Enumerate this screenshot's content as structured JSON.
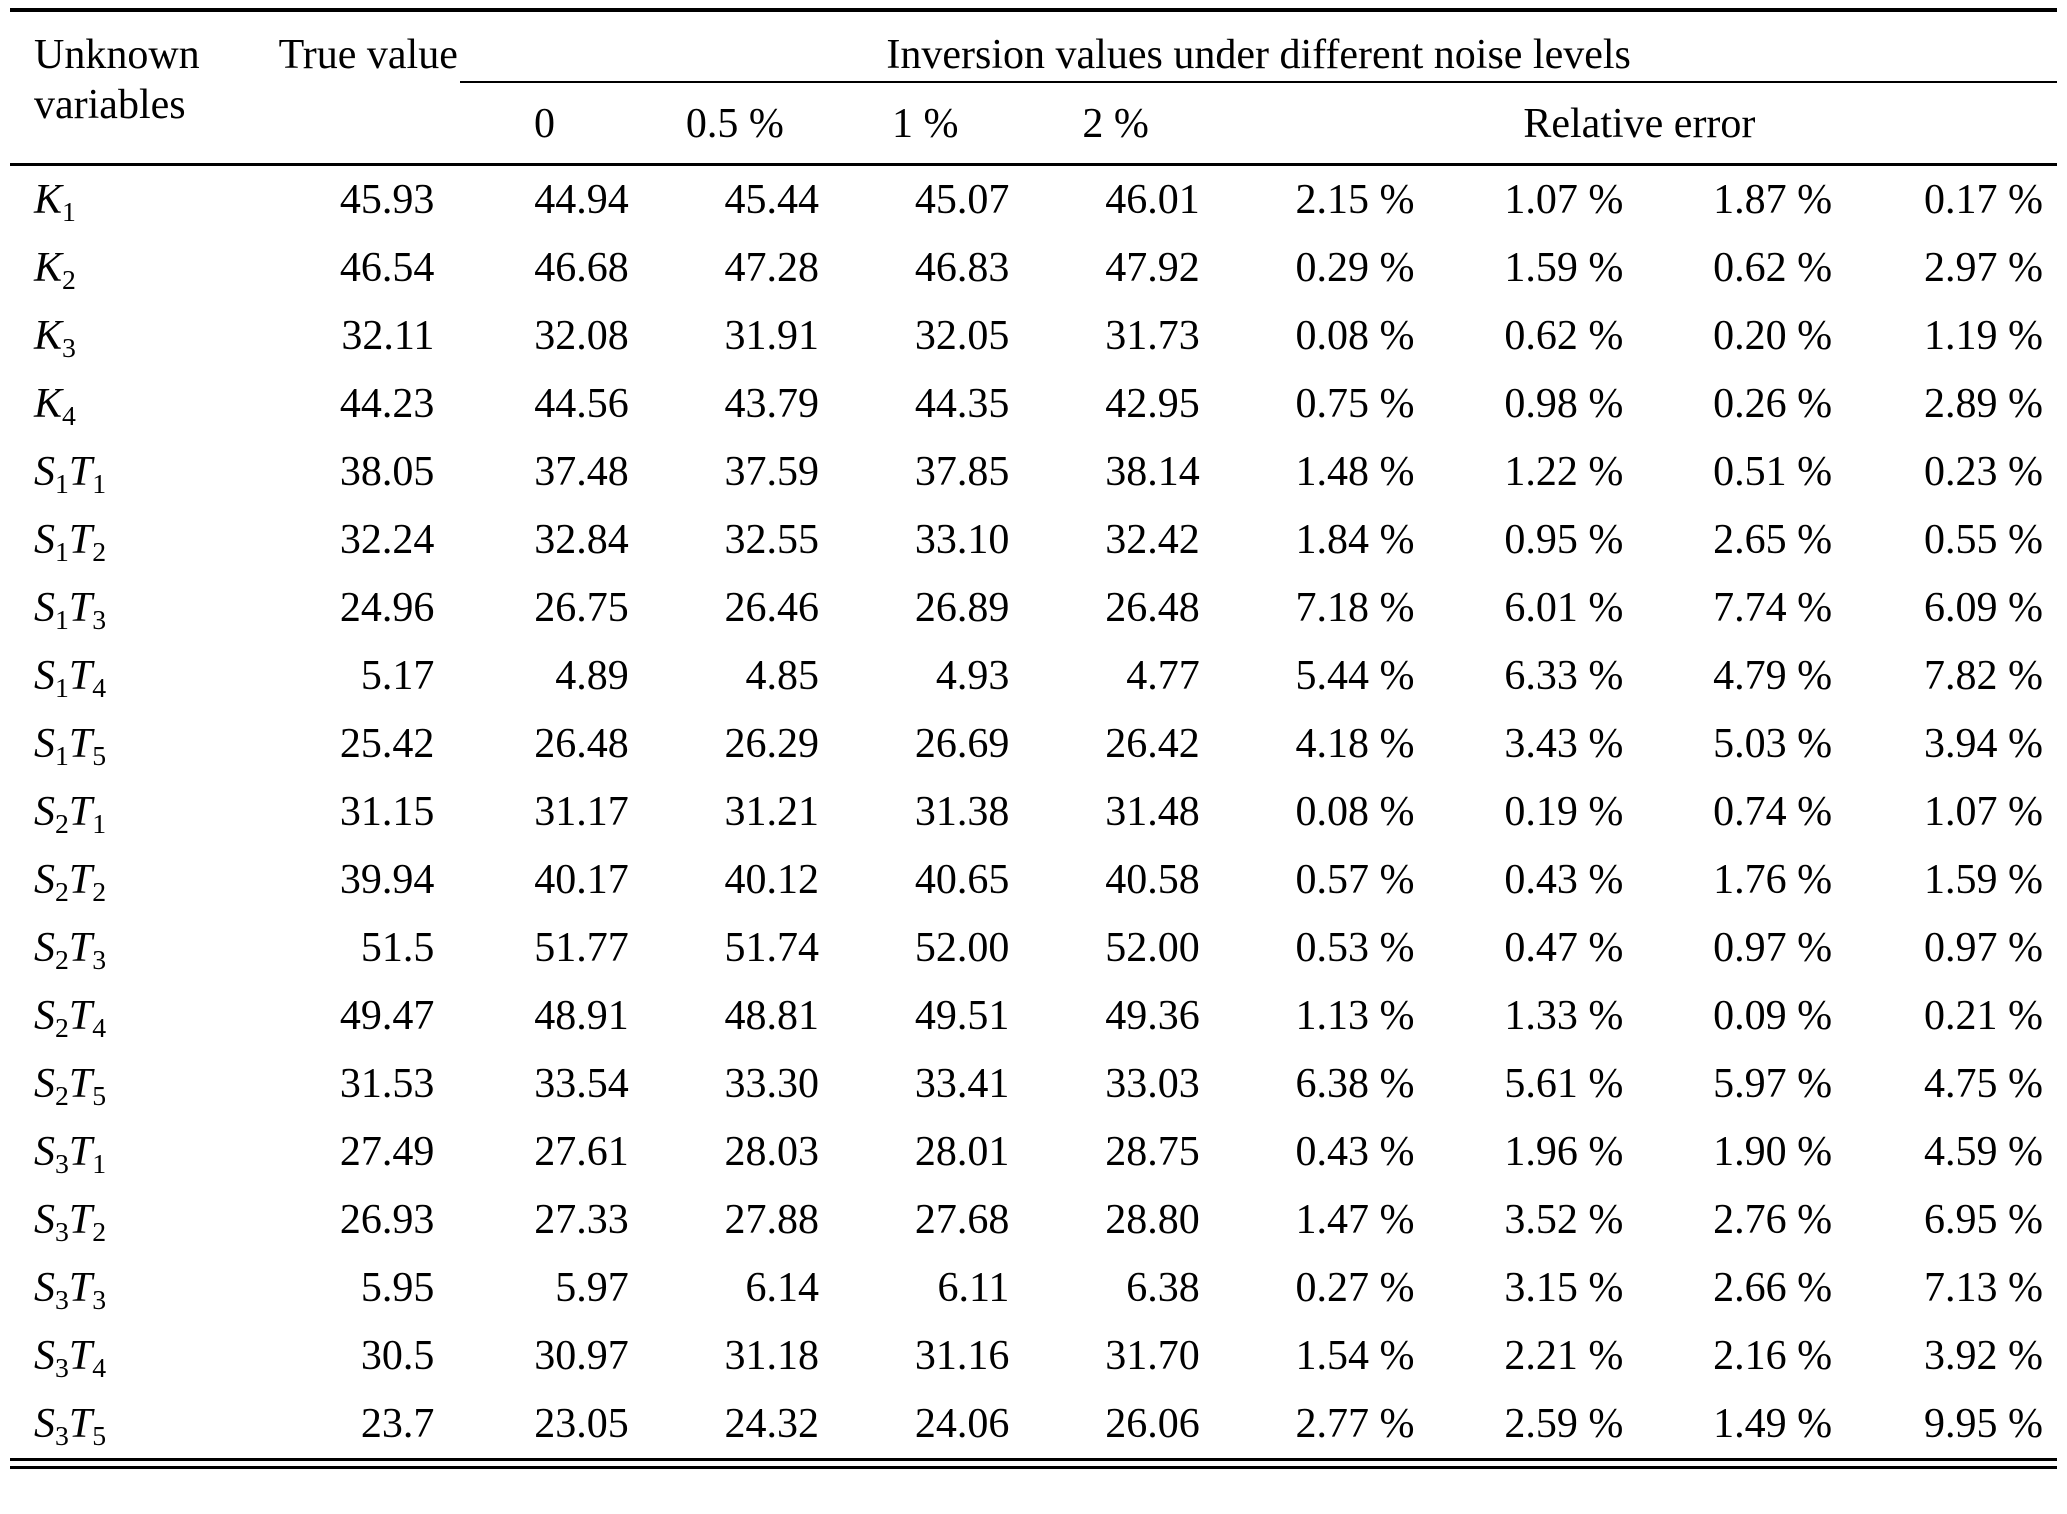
{
  "table": {
    "header": {
      "col_unknown": "Unknown variables",
      "col_true": "True value",
      "col_inversion": "Inversion values under different noise levels",
      "noise_levels": [
        "0",
        "0.5 %",
        "1 %",
        "2 %"
      ],
      "col_relative_error": "Relative error"
    },
    "rows": [
      {
        "var": "K_1",
        "true_value": "45.93",
        "inversion": [
          "44.94",
          "45.44",
          "45.07",
          "46.01"
        ],
        "relative_error": [
          "2.15 %",
          "1.07 %",
          "1.87 %",
          "0.17 %"
        ]
      },
      {
        "var": "K_2",
        "true_value": "46.54",
        "inversion": [
          "46.68",
          "47.28",
          "46.83",
          "47.92"
        ],
        "relative_error": [
          "0.29 %",
          "1.59 %",
          "0.62 %",
          "2.97 %"
        ]
      },
      {
        "var": "K_3",
        "true_value": "32.11",
        "inversion": [
          "32.08",
          "31.91",
          "32.05",
          "31.73"
        ],
        "relative_error": [
          "0.08 %",
          "0.62 %",
          "0.20 %",
          "1.19 %"
        ]
      },
      {
        "var": "K_4",
        "true_value": "44.23",
        "inversion": [
          "44.56",
          "43.79",
          "44.35",
          "42.95"
        ],
        "relative_error": [
          "0.75 %",
          "0.98 %",
          "0.26 %",
          "2.89 %"
        ]
      },
      {
        "var": "S_1T_1",
        "true_value": "38.05",
        "inversion": [
          "37.48",
          "37.59",
          "37.85",
          "38.14"
        ],
        "relative_error": [
          "1.48 %",
          "1.22 %",
          "0.51 %",
          "0.23 %"
        ]
      },
      {
        "var": "S_1T_2",
        "true_value": "32.24",
        "inversion": [
          "32.84",
          "32.55",
          "33.10",
          "32.42"
        ],
        "relative_error": [
          "1.84 %",
          "0.95 %",
          "2.65 %",
          "0.55 %"
        ]
      },
      {
        "var": "S_1T_3",
        "true_value": "24.96",
        "inversion": [
          "26.75",
          "26.46",
          "26.89",
          "26.48"
        ],
        "relative_error": [
          "7.18 %",
          "6.01 %",
          "7.74 %",
          "6.09 %"
        ]
      },
      {
        "var": "S_1T_4",
        "true_value": "5.17",
        "inversion": [
          "4.89",
          "4.85",
          "4.93",
          "4.77"
        ],
        "relative_error": [
          "5.44 %",
          "6.33 %",
          "4.79 %",
          "7.82 %"
        ]
      },
      {
        "var": "S_1T_5",
        "true_value": "25.42",
        "inversion": [
          "26.48",
          "26.29",
          "26.69",
          "26.42"
        ],
        "relative_error": [
          "4.18 %",
          "3.43 %",
          "5.03 %",
          "3.94 %"
        ]
      },
      {
        "var": "S_2T_1",
        "true_value": "31.15",
        "inversion": [
          "31.17",
          "31.21",
          "31.38",
          "31.48"
        ],
        "relative_error": [
          "0.08 %",
          "0.19 %",
          "0.74 %",
          "1.07 %"
        ]
      },
      {
        "var": "S_2T_2",
        "true_value": "39.94",
        "inversion": [
          "40.17",
          "40.12",
          "40.65",
          "40.58"
        ],
        "relative_error": [
          "0.57 %",
          "0.43 %",
          "1.76 %",
          "1.59 %"
        ]
      },
      {
        "var": "S_2T_3",
        "true_value": "51.5",
        "inversion": [
          "51.77",
          "51.74",
          "52.00",
          "52.00"
        ],
        "relative_error": [
          "0.53 %",
          "0.47 %",
          "0.97 %",
          "0.97 %"
        ]
      },
      {
        "var": "S_2T_4",
        "true_value": "49.47",
        "inversion": [
          "48.91",
          "48.81",
          "49.51",
          "49.36"
        ],
        "relative_error": [
          "1.13 %",
          "1.33 %",
          "0.09 %",
          "0.21 %"
        ]
      },
      {
        "var": "S_2T_5",
        "true_value": "31.53",
        "inversion": [
          "33.54",
          "33.30",
          "33.41",
          "33.03"
        ],
        "relative_error": [
          "6.38 %",
          "5.61 %",
          "5.97 %",
          "4.75 %"
        ]
      },
      {
        "var": "S_3T_1",
        "true_value": "27.49",
        "inversion": [
          "27.61",
          "28.03",
          "28.01",
          "28.75"
        ],
        "relative_error": [
          "0.43 %",
          "1.96 %",
          "1.90 %",
          "4.59 %"
        ]
      },
      {
        "var": "S_3T_2",
        "true_value": "26.93",
        "inversion": [
          "27.33",
          "27.88",
          "27.68",
          "28.80"
        ],
        "relative_error": [
          "1.47 %",
          "3.52 %",
          "2.76 %",
          "6.95 %"
        ]
      },
      {
        "var": "S_3T_3",
        "true_value": "5.95",
        "inversion": [
          "5.97",
          "6.14",
          "6.11",
          "6.38"
        ],
        "relative_error": [
          "0.27 %",
          "3.15 %",
          "2.66 %",
          "7.13 %"
        ]
      },
      {
        "var": "S_3T_4",
        "true_value": "30.5",
        "inversion": [
          "30.97",
          "31.18",
          "31.16",
          "31.70"
        ],
        "relative_error": [
          "1.54 %",
          "2.21 %",
          "2.16 %",
          "3.92 %"
        ]
      },
      {
        "var": "S_3T_5",
        "true_value": "23.7",
        "inversion": [
          "23.05",
          "24.32",
          "24.06",
          "26.06"
        ],
        "relative_error": [
          "2.77 %",
          "2.59 %",
          "1.49 %",
          "9.95 %"
        ]
      }
    ]
  }
}
